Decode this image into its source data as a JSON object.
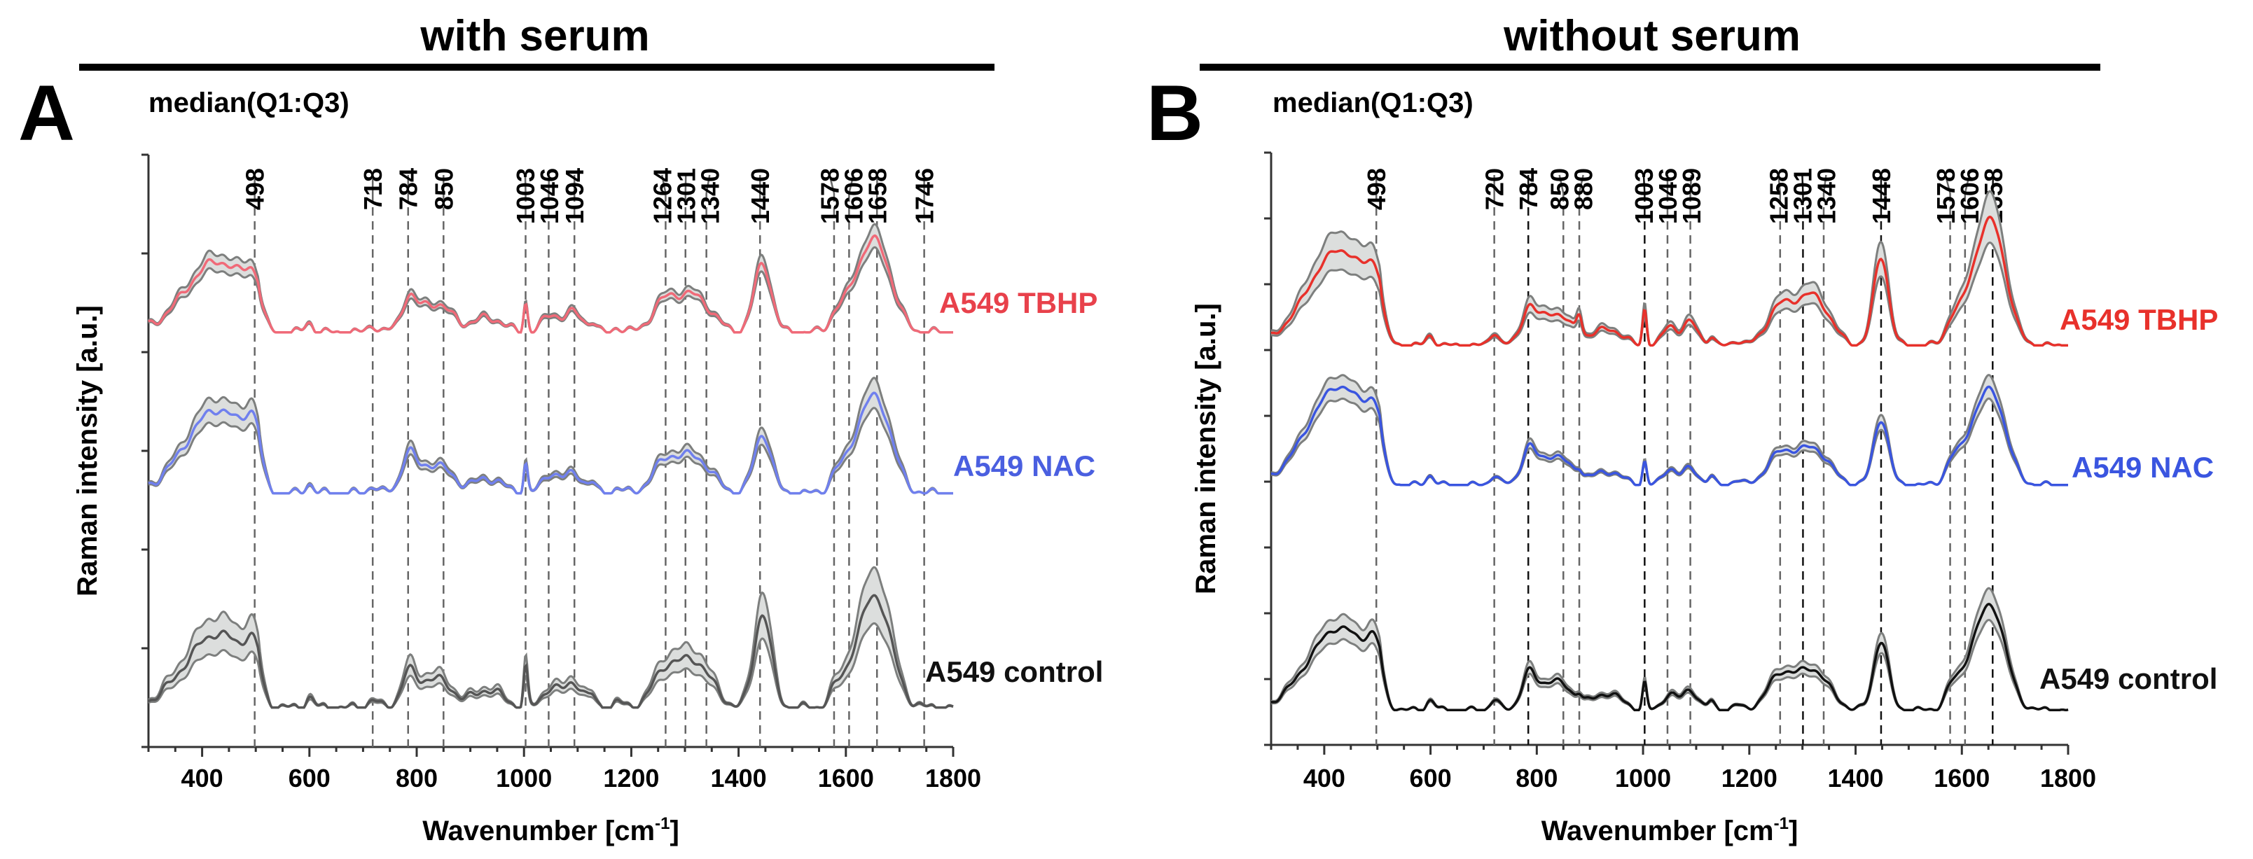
{
  "chart_data": [
    {
      "type": "line",
      "panel_letter": "A",
      "title": "with serum",
      "annotation": "median(Q1:Q3)",
      "xlabel": "Wavenumber [cm",
      "xlabel_sup": "-1",
      "xlabel_end": "]",
      "ylabel": "Raman intensity [a.u.]",
      "xlim": [
        300,
        1800
      ],
      "ylim": [
        0,
        6
      ],
      "ytick_count": 6,
      "xticks": [
        400,
        600,
        800,
        1000,
        1200,
        1400,
        1600,
        1800
      ],
      "peak_labels": [
        "498",
        "718",
        "784",
        "850",
        "1003",
        "1046",
        "1094",
        "1264",
        "1301",
        "1340",
        "1440",
        "1578",
        "1606",
        "1658",
        "1746"
      ],
      "peak_line_dark": [],
      "band_positions": [
        430,
        495,
        600,
        718,
        784,
        830,
        935,
        1003,
        1050,
        1094,
        1128,
        1175,
        1264,
        1320,
        1445,
        1580,
        1615,
        1658
      ],
      "band_widths": [
        60,
        14,
        8,
        8,
        12,
        35,
        25,
        4,
        15,
        18,
        6,
        8,
        25,
        30,
        16,
        12,
        25,
        28
      ],
      "series": [
        {
          "name": "A549 TBHP",
          "color": "#e8414b",
          "line_color": "#f06a78",
          "offset": 4.2,
          "spread": 0.12,
          "heights": [
            0.72,
            0.25,
            0.1,
            0.08,
            0.25,
            0.3,
            0.15,
            0.3,
            0.18,
            0.2,
            0.08,
            0.06,
            0.3,
            0.35,
            0.7,
            0.1,
            0.3,
            0.85
          ]
        },
        {
          "name": "A549 NAC",
          "color": "#4a5fe0",
          "line_color": "#7080ee",
          "offset": 2.57,
          "spread": 0.15,
          "heights": [
            0.85,
            0.35,
            0.1,
            0.08,
            0.3,
            0.3,
            0.15,
            0.3,
            0.2,
            0.2,
            0.08,
            0.06,
            0.3,
            0.35,
            0.6,
            0.1,
            0.3,
            0.9
          ]
        },
        {
          "name": "A549 control",
          "color": "#111111",
          "line_color": "#555555",
          "offset": 0.4,
          "spread": 0.25,
          "heights": [
            0.75,
            0.3,
            0.1,
            0.08,
            0.25,
            0.3,
            0.18,
            0.4,
            0.2,
            0.25,
            0.08,
            0.06,
            0.35,
            0.45,
            0.95,
            0.1,
            0.3,
            1.05
          ]
        }
      ]
    },
    {
      "type": "line",
      "panel_letter": "B",
      "title": "without serum",
      "annotation": "median(Q1:Q3)",
      "xlabel": "Wavenumber [cm",
      "xlabel_sup": "-1",
      "xlabel_end": "]",
      "ylabel": "Raman intensity [a.u.]",
      "xlim": [
        300,
        1800
      ],
      "ylim": [
        0,
        9
      ],
      "ytick_count": 9,
      "xticks": [
        400,
        600,
        800,
        1000,
        1200,
        1400,
        1600,
        1800
      ],
      "peak_labels": [
        "498",
        "720",
        "784",
        "850",
        "880",
        "1003",
        "1046",
        "1089",
        "1258",
        "1301",
        "1340",
        "1448",
        "1578",
        "1606",
        "1658"
      ],
      "peak_line_dark": [
        "784",
        "1003",
        "1301",
        "1448",
        "1658"
      ],
      "band_positions": [
        430,
        495,
        600,
        720,
        784,
        830,
        880,
        935,
        1003,
        1050,
        1089,
        1128,
        1175,
        1258,
        1320,
        1448,
        1580,
        1615,
        1658
      ],
      "band_widths": [
        60,
        14,
        8,
        8,
        12,
        35,
        5,
        25,
        4,
        12,
        15,
        6,
        8,
        25,
        30,
        14,
        12,
        25,
        26
      ],
      "series": [
        {
          "name": "A549 TBHP",
          "color": "#e8312b",
          "line_color": "#e8312b",
          "offset": 6.07,
          "spread": 0.2,
          "heights": [
            1.45,
            0.45,
            0.15,
            0.2,
            0.4,
            0.5,
            0.3,
            0.25,
            0.55,
            0.3,
            0.35,
            0.12,
            0.08,
            0.55,
            0.75,
            1.35,
            0.2,
            0.6,
            1.75
          ]
        },
        {
          "name": "A549 NAC",
          "color": "#3a55e0",
          "line_color": "#3a55e0",
          "offset": 3.95,
          "spread": 0.12,
          "heights": [
            1.5,
            0.45,
            0.15,
            0.15,
            0.4,
            0.45,
            0.1,
            0.2,
            0.35,
            0.25,
            0.25,
            0.12,
            0.08,
            0.45,
            0.55,
            1.0,
            0.2,
            0.55,
            1.3
          ]
        },
        {
          "name": "A549 control",
          "color": "#111111",
          "line_color": "#111111",
          "offset": 0.53,
          "spread": 0.15,
          "heights": [
            1.25,
            0.45,
            0.15,
            0.15,
            0.4,
            0.45,
            0.1,
            0.25,
            0.4,
            0.25,
            0.3,
            0.12,
            0.08,
            0.5,
            0.6,
            1.05,
            0.2,
            0.55,
            1.45
          ]
        }
      ]
    }
  ]
}
